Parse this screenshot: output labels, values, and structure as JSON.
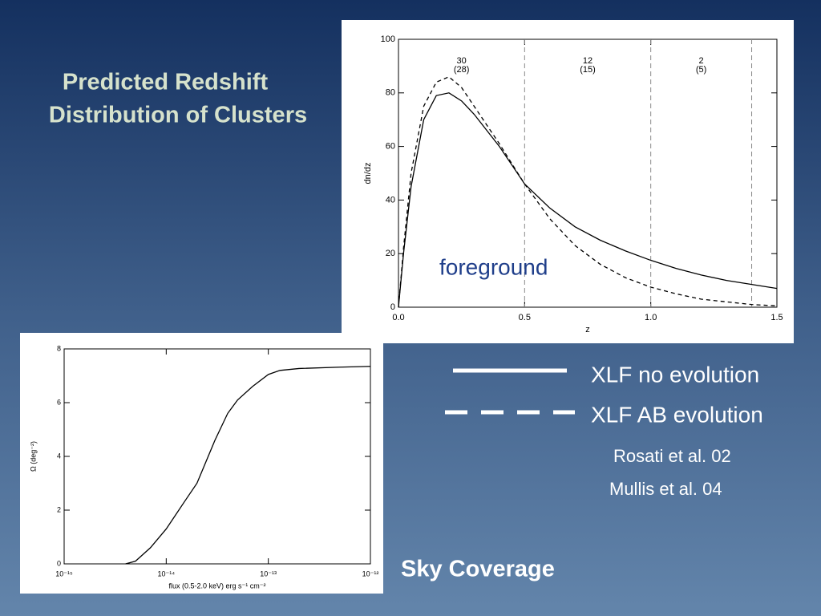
{
  "slide": {
    "title": [
      "Predicted Redshift",
      "Distribution of Clusters"
    ],
    "references": [
      "Rosati et al. 02",
      "Mullis et al. 04"
    ],
    "caption": "Sky Coverage"
  },
  "chart_data": [
    {
      "type": "line",
      "xlabel": "z",
      "ylabel": "dn/dz",
      "annotation": "foreground",
      "x": [
        0,
        0.02,
        0.05,
        0.1,
        0.15,
        0.2,
        0.25,
        0.3,
        0.4,
        0.5,
        0.6,
        0.7,
        0.8,
        0.9,
        1.0,
        1.1,
        1.2,
        1.3,
        1.4,
        1.5
      ],
      "series": [
        {
          "name": "XLF no evolution",
          "color": "#000000",
          "dash": false,
          "values": [
            0,
            20,
            45,
            70,
            79,
            80,
            77,
            72,
            60,
            46,
            37,
            30,
            25,
            21,
            17.5,
            14.5,
            12,
            10,
            8.5,
            7
          ]
        },
        {
          "name": "XLF AB evolution",
          "color": "#000000",
          "dash": true,
          "values": [
            0,
            22,
            50,
            75,
            84,
            86,
            82,
            75,
            61,
            46,
            33,
            23,
            16,
            11,
            7.5,
            5,
            3,
            2,
            1,
            0.5
          ]
        }
      ],
      "vlines": [
        0.5,
        1.0,
        1.4
      ],
      "region_labels": [
        [
          "30",
          "(28)"
        ],
        [
          "12",
          "(15)"
        ],
        [
          "2",
          "(5)"
        ]
      ],
      "xlim": [
        0,
        1.5
      ],
      "ylim": [
        0,
        100
      ],
      "xticks": [
        {
          "value": 0,
          "label": "0.0"
        },
        {
          "value": 0.5,
          "label": "0.5"
        },
        {
          "value": 1,
          "label": "1.0"
        },
        {
          "value": 1.5,
          "label": "1.5"
        }
      ],
      "yticks": [
        0,
        20,
        40,
        60,
        80,
        100
      ]
    },
    {
      "type": "line",
      "xlabel": "flux (0.5-2.0 keV) erg s⁻¹ cm⁻²",
      "ylabel": "Ω (deg⁻²)",
      "xscale": "log",
      "x": [
        4e-15,
        5e-15,
        7e-15,
        1e-14,
        1.5e-14,
        2e-14,
        3e-14,
        4e-14,
        5e-14,
        7e-14,
        1e-13,
        1.3e-13,
        2e-13,
        5e-13,
        1e-12
      ],
      "series": [
        {
          "color": "#000000",
          "dash": false,
          "values": [
            0,
            0.1,
            0.6,
            1.3,
            2.3,
            3.0,
            4.6,
            5.6,
            6.1,
            6.6,
            7.05,
            7.2,
            7.27,
            7.32,
            7.35
          ]
        }
      ],
      "xlim": [
        1e-15,
        1e-12
      ],
      "ylim": [
        0,
        8
      ],
      "xticks": [
        {
          "value": 1e-15,
          "label": "10⁻¹⁵"
        },
        {
          "value": 1e-14,
          "label": "10⁻¹⁴"
        },
        {
          "value": 1e-13,
          "label": "10⁻¹³"
        },
        {
          "value": 1e-12,
          "label": "10⁻¹²"
        }
      ],
      "yticks": [
        0,
        2,
        4,
        6,
        8
      ]
    }
  ]
}
